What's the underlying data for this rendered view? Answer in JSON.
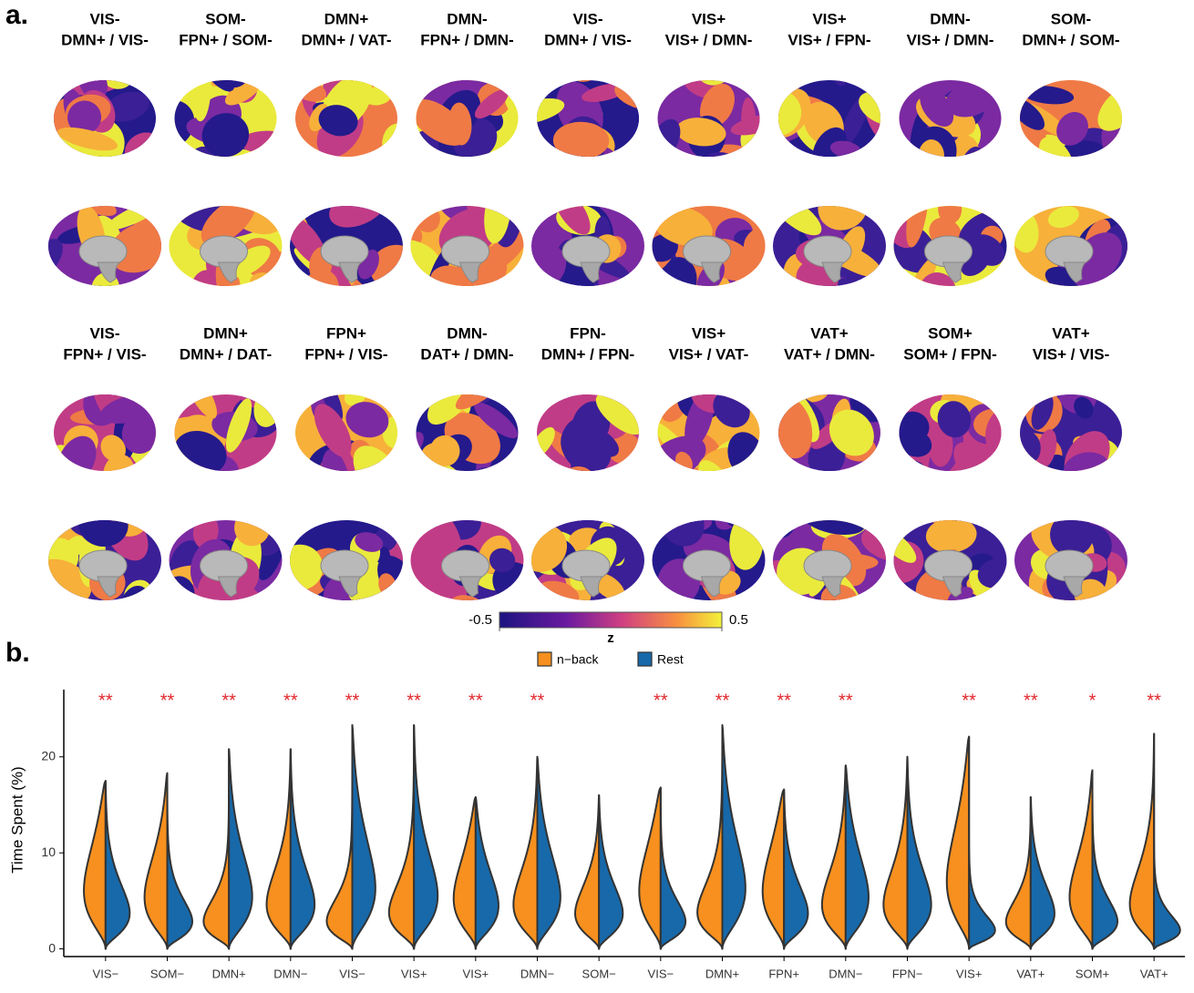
{
  "panel_a": {
    "label": "a.",
    "maps": [
      {
        "line1": "VIS-",
        "line2": "DMN+ / VIS-"
      },
      {
        "line1": "SOM-",
        "line2": "FPN+ / SOM-"
      },
      {
        "line1": "DMN+",
        "line2": "DMN+ / VAT-"
      },
      {
        "line1": "DMN-",
        "line2": "FPN+ / DMN-"
      },
      {
        "line1": "VIS-",
        "line2": "DMN+ / VIS-"
      },
      {
        "line1": "VIS+",
        "line2": "VIS+ / DMN-"
      },
      {
        "line1": "VIS+",
        "line2": "VIS+ / FPN-"
      },
      {
        "line1": "DMN-",
        "line2": "VIS+ / DMN-"
      },
      {
        "line1": "SOM-",
        "line2": "DMN+ / SOM-"
      },
      {
        "line1": "VIS-",
        "line2": "FPN+ / VIS-"
      },
      {
        "line1": "DMN+",
        "line2": "DMN+ / DAT-"
      },
      {
        "line1": "FPN+",
        "line2": "FPN+ / VIS-"
      },
      {
        "line1": "DMN-",
        "line2": "DAT+ / DMN-"
      },
      {
        "line1": "FPN-",
        "line2": "DMN+ / FPN-"
      },
      {
        "line1": "VIS+",
        "line2": "VIS+ / VAT-"
      },
      {
        "line1": "VAT+",
        "line2": "VAT+ / DMN-"
      },
      {
        "line1": "SOM+",
        "line2": "SOM+ / FPN-"
      },
      {
        "line1": "VAT+",
        "line2": "VIS+ / VIS-"
      }
    ],
    "colorbar": {
      "label": "z",
      "range": [
        -0.5,
        0.5
      ],
      "ticks": [
        -0.5,
        0.5
      ]
    }
  },
  "chart_data": {
    "type": "violin",
    "panel_label": "b.",
    "y_label": "Time Spent (%)",
    "categories": [
      "VIS−",
      "SOM−",
      "DMN+",
      "DMN−",
      "VIS−",
      "VIS+",
      "VIS+",
      "DMN−",
      "SOM−",
      "VIS−",
      "DMN+",
      "FPN+",
      "DMN−",
      "FPN−",
      "VIS+",
      "VAT+",
      "SOM+",
      "VAT+"
    ],
    "maxes": [
      17.5,
      18.3,
      20.8,
      20.8,
      23.3,
      23.3,
      15.8,
      20,
      16,
      16.8,
      23.3,
      16.6,
      19.1,
      20,
      22.1,
      15.8,
      18.6,
      22.4
    ],
    "series": [
      {
        "name": "n−back",
        "color": "#f7901e",
        "modes": [
          7,
          6,
          3,
          5,
          3,
          4,
          6,
          5,
          4,
          7,
          4,
          7,
          5,
          5,
          8,
          3,
          6,
          5
        ]
      },
      {
        "name": "Rest",
        "color": "#1769aa",
        "modes": [
          4,
          3,
          6,
          5,
          7,
          6,
          5,
          6,
          4,
          3,
          7,
          4,
          6,
          5,
          2,
          4,
          3,
          2
        ]
      }
    ],
    "significance": [
      "**",
      "**",
      "**",
      "**",
      "**",
      "**",
      "**",
      "**",
      null,
      "**",
      "**",
      "**",
      "**",
      null,
      "**",
      "**",
      "*",
      "**"
    ],
    "significance_color": "#e0262a",
    "ylim": [
      -0.8,
      27
    ],
    "yticks": [
      0,
      10,
      20
    ]
  }
}
